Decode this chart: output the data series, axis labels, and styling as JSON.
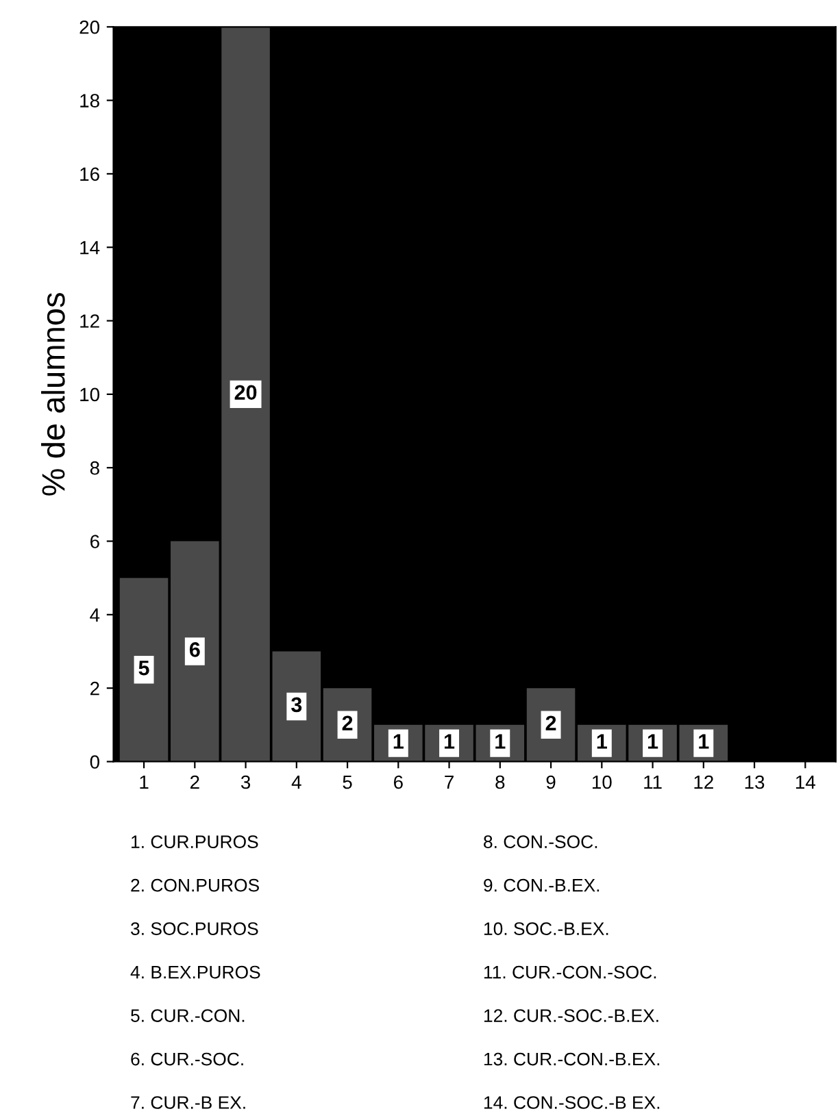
{
  "chart_data": {
    "type": "bar",
    "ylabel": "% de alumnos",
    "categories": [
      "1",
      "2",
      "3",
      "4",
      "5",
      "6",
      "7",
      "8",
      "9",
      "10",
      "11",
      "12",
      "13",
      "14"
    ],
    "values": [
      5,
      6,
      20,
      3,
      2,
      1,
      1,
      1,
      2,
      1,
      1,
      1,
      0,
      0
    ],
    "value_labels": [
      "5",
      "6",
      "20",
      "3",
      "2",
      "1",
      "1",
      "1",
      "2",
      "1",
      "1",
      "1",
      null,
      null
    ],
    "color": "#4a4a4a",
    "ylim": [
      0,
      20
    ],
    "yticks": [
      0,
      2,
      4,
      6,
      8,
      10,
      12,
      14,
      16,
      18,
      20
    ],
    "grid": false,
    "annotations": [
      "1. CUR.PUROS",
      "2. CON.PUROS",
      "3. SOC.PUROS",
      "4. B.EX.PUROS",
      "5. CUR.-CON.",
      "6. CUR.-SOC.",
      "7. CUR.-B EX.",
      "8. CON.-SOC.",
      "9. CON.-B.EX.",
      "10. SOC.-B.EX.",
      "11. CUR.-CON.-SOC.",
      "12. CUR.-SOC.-B.EX.",
      "13. CUR.-CON.-B.EX.",
      "14. CON.-SOC.-B EX."
    ]
  }
}
